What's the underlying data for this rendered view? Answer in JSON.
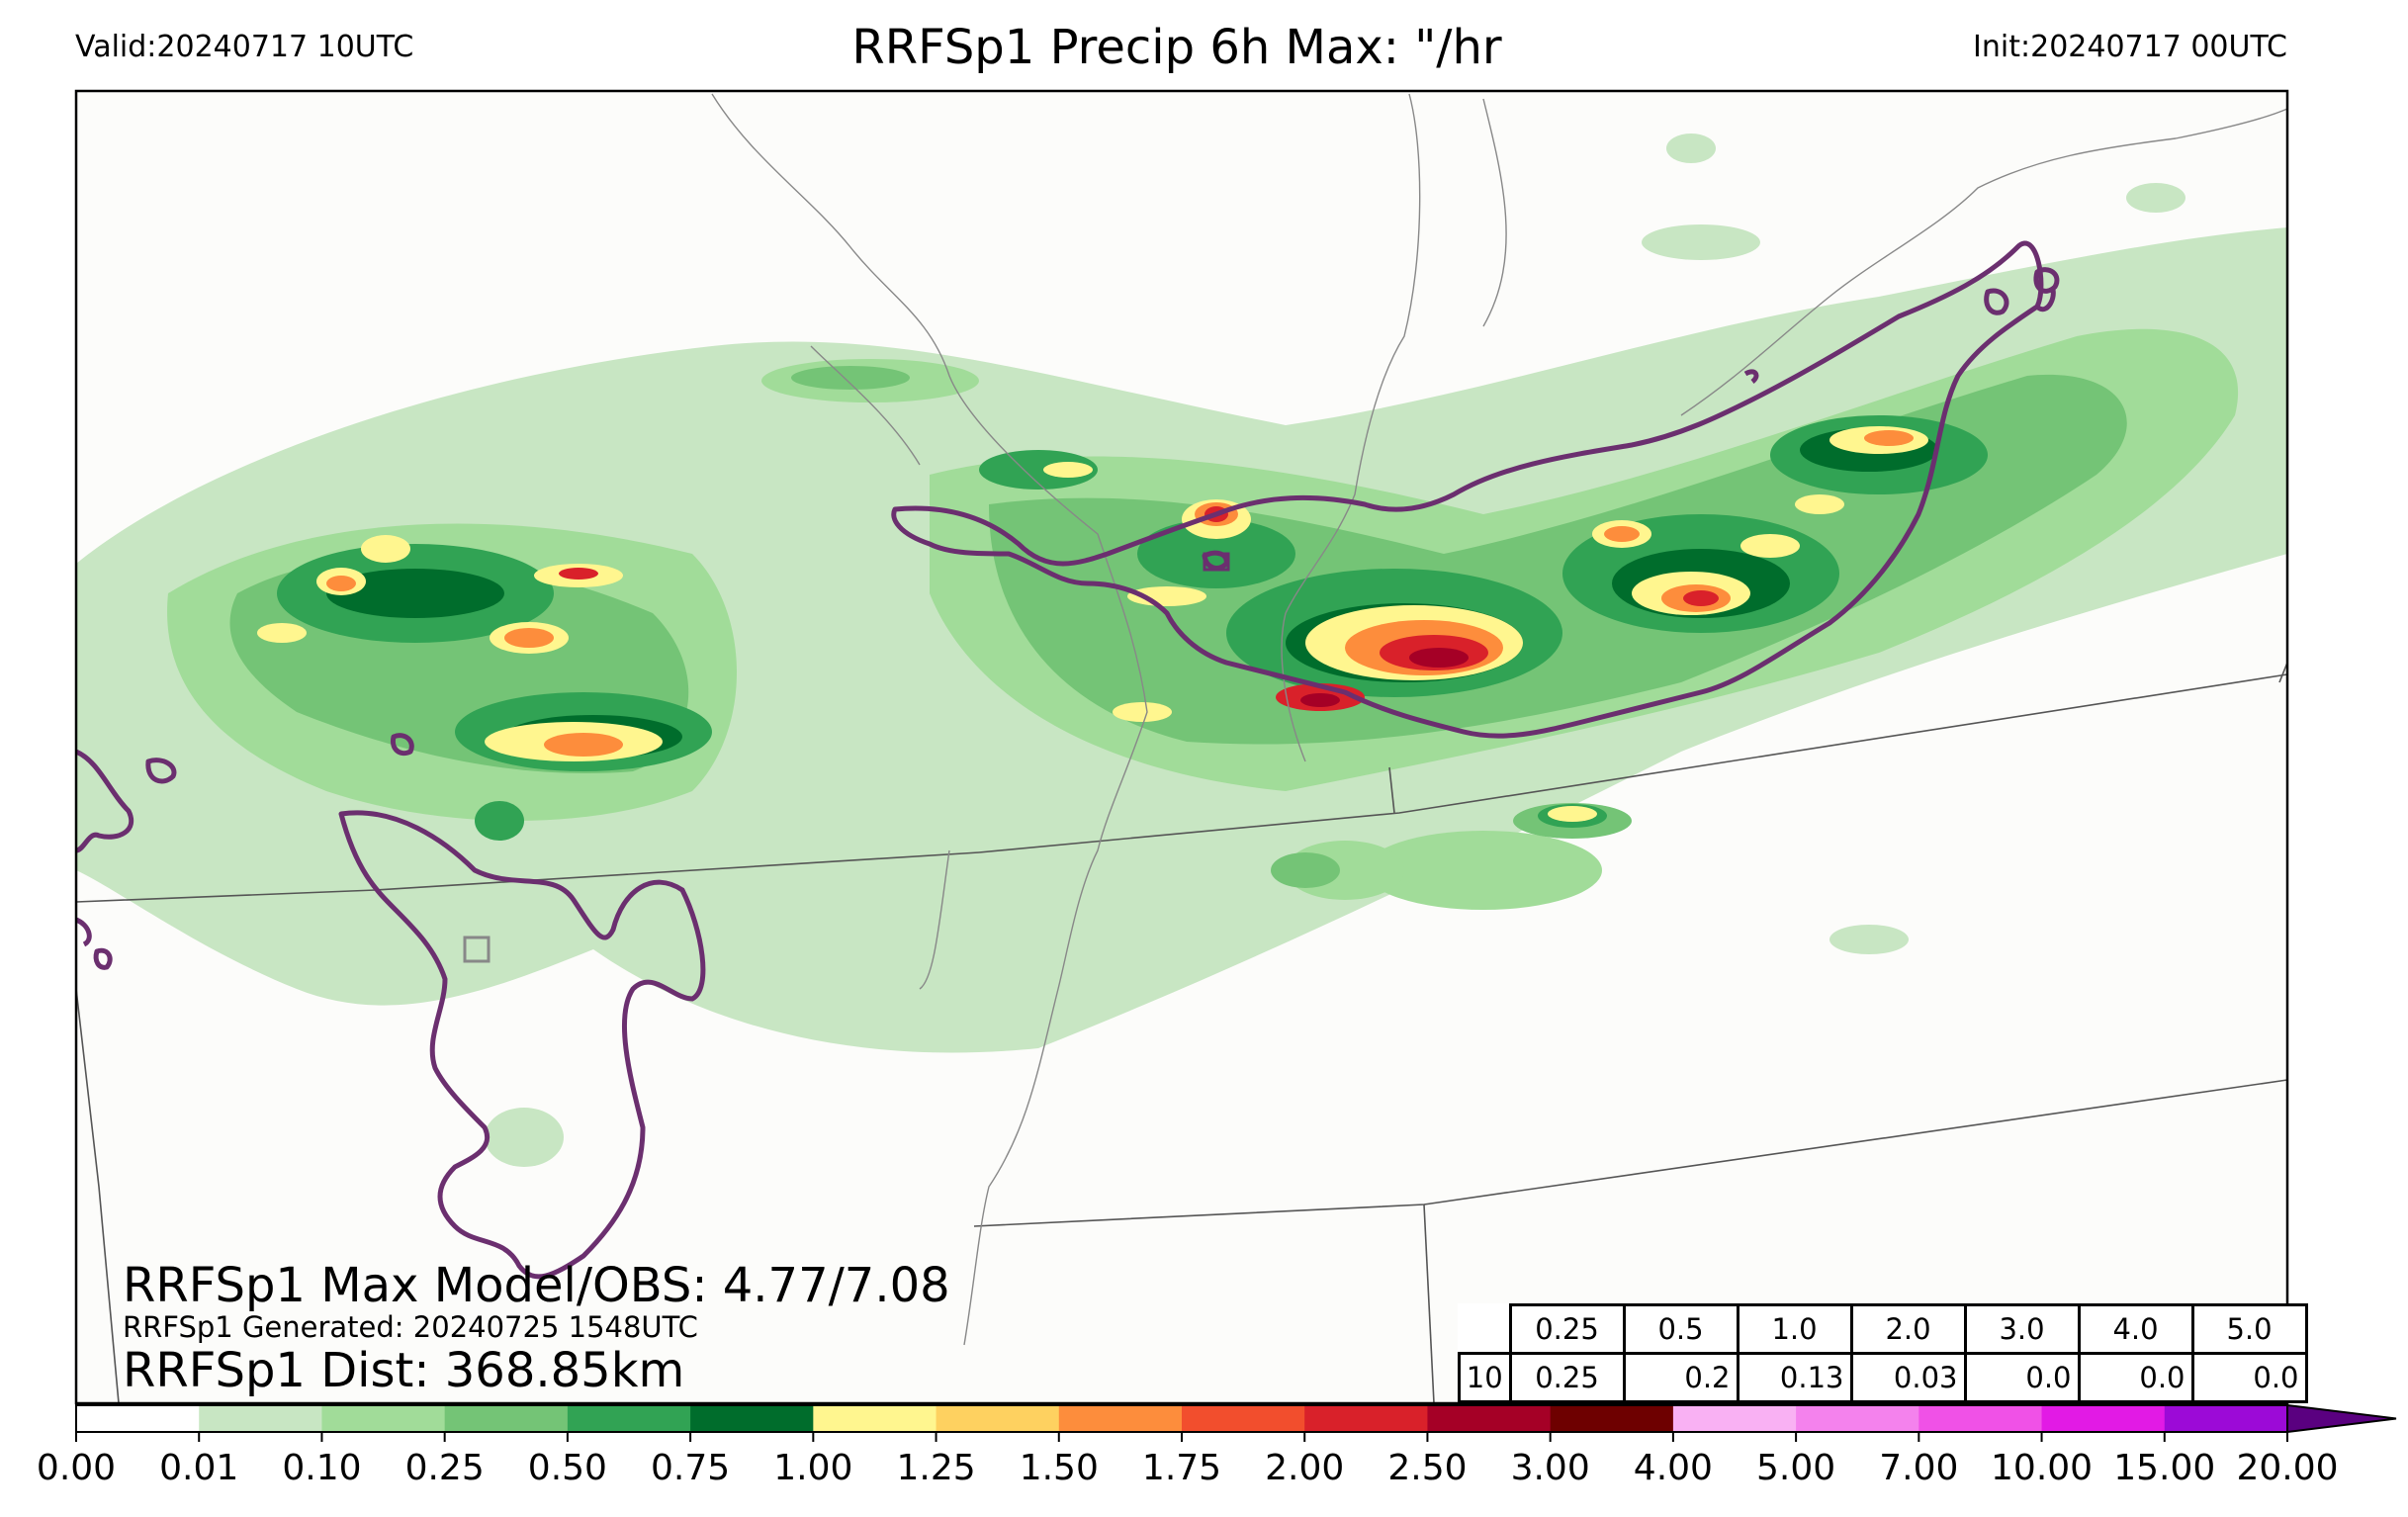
{
  "header": {
    "valid": "Valid:20240717 10UTC",
    "title": "RRFSp1 Precip 6h Max: \"/hr",
    "init": "Init:20240717 00UTC"
  },
  "stats": {
    "max_line": "RRFSp1 Max Model/OBS: 4.77/7.08",
    "generated_line": "RRFSp1 Generated: 20240725 1548UTC",
    "dist_line": "RRFSp1 Dist: 368.85km"
  },
  "threshold_table": {
    "thresholds": [
      "0.25",
      "0.5",
      "1.0",
      "2.0",
      "3.0",
      "4.0",
      "5.0"
    ],
    "row_label": "10",
    "values": [
      "0.25",
      "0.2",
      "0.13",
      "0.03",
      "0.0",
      "0.0",
      "0.0"
    ]
  },
  "colorbar": {
    "ticks": [
      "0.00",
      "0.01",
      "0.10",
      "0.25",
      "0.50",
      "0.75",
      "1.00",
      "1.25",
      "1.50",
      "1.75",
      "2.00",
      "2.50",
      "3.00",
      "4.00",
      "5.00",
      "7.00",
      "10.00",
      "15.00",
      "20.00"
    ],
    "colors": [
      "#ffffff",
      "#c8e6c3",
      "#a1dc99",
      "#74c476",
      "#31a354",
      "#006d2c",
      "#fff68f",
      "#fed160",
      "#fd8d3c",
      "#f24e2d",
      "#d9212a",
      "#a50026",
      "#6e0000",
      "#f9b1f3",
      "#f482ed",
      "#f051e7",
      "#e21ae5",
      "#9c0ad7"
    ],
    "extend_color": "#5a0080"
  },
  "map_colors": {
    "light_green": "#c8e6c3",
    "mid_green": "#a1dc99",
    "green": "#74c476",
    "dark_green": "#31a354",
    "darkest_green": "#006d2c",
    "yellow": "#fff68f",
    "orange": "#fd8d3c",
    "red": "#d9212a",
    "maroon": "#a50026",
    "obs_contour": "#6b2f6f",
    "border": "#555555",
    "background": "#fcfcfa"
  }
}
